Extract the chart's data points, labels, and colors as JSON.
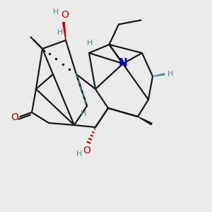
{
  "bg_color": "#ebebeb",
  "bond_color": "#1a1a1a",
  "O_color": "#cc0000",
  "N_color": "#0000cc",
  "H_color": "#4a9090",
  "lw": 1.6,
  "xlim": [
    0,
    10
  ],
  "ylim": [
    0,
    10
  ]
}
